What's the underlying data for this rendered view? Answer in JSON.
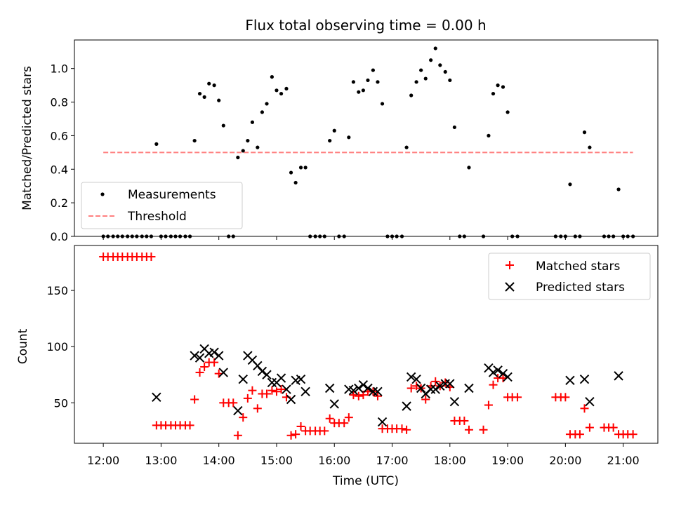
{
  "chart_data": [
    {
      "type": "scatter",
      "title": "Flux total observing time = 0.00 h",
      "xlabel": "",
      "ylabel": "Matched/Predicted stars",
      "xlim": [
        11.5,
        21.6
      ],
      "ylim": [
        0,
        1.17
      ],
      "yticks": [
        0.0,
        0.2,
        0.4,
        0.6,
        0.8,
        1.0
      ],
      "ytick_labels": [
        "0.0",
        "0.2",
        "0.4",
        "0.6",
        "0.8",
        "1.0"
      ],
      "threshold": {
        "name": "Threshold",
        "value": 0.5,
        "x_range": [
          12.0,
          21.17
        ],
        "color": "#ff8080"
      },
      "legend": {
        "position": "lower-left",
        "entries": [
          "Measurements",
          "Threshold"
        ]
      },
      "series": [
        {
          "name": "Measurements",
          "marker": "dot",
          "color": "#000000",
          "points": [
            [
              12.0,
              0
            ],
            [
              12.08,
              0
            ],
            [
              12.17,
              0
            ],
            [
              12.25,
              0
            ],
            [
              12.33,
              0
            ],
            [
              12.42,
              0
            ],
            [
              12.5,
              0
            ],
            [
              12.58,
              0
            ],
            [
              12.67,
              0
            ],
            [
              12.75,
              0
            ],
            [
              12.83,
              0
            ],
            [
              12.92,
              0.55
            ],
            [
              13.0,
              0
            ],
            [
              13.08,
              0
            ],
            [
              13.17,
              0
            ],
            [
              13.25,
              0
            ],
            [
              13.33,
              0
            ],
            [
              13.42,
              0
            ],
            [
              13.5,
              0
            ],
            [
              13.58,
              0.57
            ],
            [
              13.67,
              0.85
            ],
            [
              13.75,
              0.83
            ],
            [
              13.83,
              0.91
            ],
            [
              13.92,
              0.9
            ],
            [
              14.0,
              0.81
            ],
            [
              14.08,
              0.66
            ],
            [
              14.17,
              0
            ],
            [
              14.25,
              0
            ],
            [
              14.33,
              0.47
            ],
            [
              14.42,
              0.51
            ],
            [
              14.5,
              0.57
            ],
            [
              14.58,
              0.68
            ],
            [
              14.67,
              0.53
            ],
            [
              14.75,
              0.74
            ],
            [
              14.83,
              0.79
            ],
            [
              14.92,
              0.95
            ],
            [
              15.0,
              0.87
            ],
            [
              15.08,
              0.85
            ],
            [
              15.17,
              0.88
            ],
            [
              15.25,
              0.38
            ],
            [
              15.33,
              0.32
            ],
            [
              15.42,
              0.41
            ],
            [
              15.5,
              0.41
            ],
            [
              15.58,
              0
            ],
            [
              15.67,
              0
            ],
            [
              15.75,
              0
            ],
            [
              15.83,
              0
            ],
            [
              15.92,
              0.57
            ],
            [
              16.0,
              0.63
            ],
            [
              16.08,
              0
            ],
            [
              16.17,
              0
            ],
            [
              16.25,
              0.59
            ],
            [
              16.33,
              0.92
            ],
            [
              16.42,
              0.86
            ],
            [
              16.5,
              0.87
            ],
            [
              16.58,
              0.93
            ],
            [
              16.67,
              0.99
            ],
            [
              16.75,
              0.92
            ],
            [
              16.83,
              0.79
            ],
            [
              16.92,
              0
            ],
            [
              17.0,
              0
            ],
            [
              17.08,
              0
            ],
            [
              17.17,
              0
            ],
            [
              17.25,
              0.53
            ],
            [
              17.33,
              0.84
            ],
            [
              17.42,
              0.92
            ],
            [
              17.5,
              0.99
            ],
            [
              17.58,
              0.94
            ],
            [
              17.67,
              1.05
            ],
            [
              17.75,
              1.12
            ],
            [
              17.83,
              1.02
            ],
            [
              17.92,
              0.98
            ],
            [
              18.0,
              0.93
            ],
            [
              18.08,
              0.65
            ],
            [
              18.17,
              0
            ],
            [
              18.25,
              0
            ],
            [
              18.33,
              0.41
            ],
            [
              18.58,
              0
            ],
            [
              18.67,
              0.6
            ],
            [
              18.75,
              0.85
            ],
            [
              18.83,
              0.9
            ],
            [
              18.92,
              0.89
            ],
            [
              19.0,
              0.74
            ],
            [
              19.08,
              0
            ],
            [
              19.17,
              0
            ],
            [
              19.83,
              0
            ],
            [
              19.92,
              0
            ],
            [
              20.0,
              0
            ],
            [
              20.08,
              0.31
            ],
            [
              20.17,
              0
            ],
            [
              20.25,
              0
            ],
            [
              20.33,
              0.62
            ],
            [
              20.42,
              0.53
            ],
            [
              20.67,
              0
            ],
            [
              20.75,
              0
            ],
            [
              20.83,
              0
            ],
            [
              20.92,
              0.28
            ],
            [
              21.0,
              0
            ],
            [
              21.08,
              0
            ],
            [
              21.17,
              0
            ]
          ]
        }
      ]
    },
    {
      "type": "scatter",
      "title": "",
      "xlabel": "Time (UTC)",
      "ylabel": "Count",
      "xlim": [
        11.5,
        21.6
      ],
      "ylim": [
        14,
        190
      ],
      "yticks": [
        50,
        100,
        150
      ],
      "ytick_labels": [
        "50",
        "100",
        "150"
      ],
      "xticks": [
        12,
        13,
        14,
        15,
        16,
        17,
        18,
        19,
        20,
        21
      ],
      "xtick_labels": [
        "12:00",
        "13:00",
        "14:00",
        "15:00",
        "16:00",
        "17:00",
        "18:00",
        "19:00",
        "20:00",
        "21:00"
      ],
      "legend": {
        "position": "top-right",
        "entries": [
          "Matched stars",
          "Predicted stars"
        ]
      },
      "series": [
        {
          "name": "Matched stars",
          "marker": "plus",
          "color": "#ff0000",
          "points": [
            [
              12.0,
              180
            ],
            [
              12.08,
              180
            ],
            [
              12.17,
              180
            ],
            [
              12.25,
              180
            ],
            [
              12.33,
              180
            ],
            [
              12.42,
              180
            ],
            [
              12.5,
              180
            ],
            [
              12.58,
              180
            ],
            [
              12.67,
              180
            ],
            [
              12.75,
              180
            ],
            [
              12.83,
              180
            ],
            [
              12.92,
              30
            ],
            [
              13.0,
              30
            ],
            [
              13.08,
              30
            ],
            [
              13.17,
              30
            ],
            [
              13.25,
              30
            ],
            [
              13.33,
              30
            ],
            [
              13.42,
              30
            ],
            [
              13.5,
              30
            ],
            [
              13.58,
              53
            ],
            [
              13.67,
              77
            ],
            [
              13.75,
              82
            ],
            [
              13.83,
              86
            ],
            [
              13.92,
              86
            ],
            [
              14.0,
              76
            ],
            [
              14.08,
              50
            ],
            [
              14.17,
              50
            ],
            [
              14.25,
              50
            ],
            [
              14.33,
              21
            ],
            [
              14.42,
              37
            ],
            [
              14.5,
              54
            ],
            [
              14.58,
              61
            ],
            [
              14.67,
              45
            ],
            [
              14.75,
              58
            ],
            [
              14.83,
              58
            ],
            [
              14.92,
              61
            ],
            [
              15.0,
              60
            ],
            [
              15.08,
              62
            ],
            [
              15.17,
              55
            ],
            [
              15.25,
              21
            ],
            [
              15.33,
              22
            ],
            [
              15.42,
              29
            ],
            [
              15.5,
              25
            ],
            [
              15.58,
              25
            ],
            [
              15.67,
              25
            ],
            [
              15.75,
              25
            ],
            [
              15.83,
              25
            ],
            [
              15.92,
              36
            ],
            [
              16.0,
              32
            ],
            [
              16.08,
              32
            ],
            [
              16.17,
              32
            ],
            [
              16.25,
              37
            ],
            [
              16.33,
              57
            ],
            [
              16.42,
              56
            ],
            [
              16.5,
              57
            ],
            [
              16.58,
              60
            ],
            [
              16.67,
              60
            ],
            [
              16.75,
              56
            ],
            [
              16.83,
              27
            ],
            [
              16.92,
              27
            ],
            [
              17.0,
              27
            ],
            [
              17.08,
              27
            ],
            [
              17.17,
              27
            ],
            [
              17.25,
              26
            ],
            [
              17.33,
              63
            ],
            [
              17.42,
              65
            ],
            [
              17.5,
              63
            ],
            [
              17.58,
              53
            ],
            [
              17.67,
              65
            ],
            [
              17.75,
              69
            ],
            [
              17.83,
              65
            ],
            [
              17.92,
              68
            ],
            [
              18.0,
              64
            ],
            [
              18.08,
              34
            ],
            [
              18.17,
              34
            ],
            [
              18.25,
              34
            ],
            [
              18.33,
              26
            ],
            [
              18.58,
              26
            ],
            [
              18.67,
              48
            ],
            [
              18.75,
              66
            ],
            [
              18.83,
              72
            ],
            [
              18.92,
              72
            ],
            [
              19.0,
              55
            ],
            [
              19.08,
              55
            ],
            [
              19.17,
              55
            ],
            [
              19.83,
              55
            ],
            [
              19.92,
              55
            ],
            [
              20.0,
              55
            ],
            [
              20.08,
              22
            ],
            [
              20.17,
              22
            ],
            [
              20.25,
              22
            ],
            [
              20.33,
              45
            ],
            [
              20.42,
              28
            ],
            [
              20.67,
              28
            ],
            [
              20.75,
              28
            ],
            [
              20.83,
              28
            ],
            [
              20.92,
              22
            ],
            [
              21.0,
              22
            ],
            [
              21.08,
              22
            ],
            [
              21.17,
              22
            ]
          ]
        },
        {
          "name": "Predicted stars",
          "marker": "cross",
          "color": "#000000",
          "points": [
            [
              12.92,
              55
            ],
            [
              13.58,
              92
            ],
            [
              13.67,
              90
            ],
            [
              13.75,
              98
            ],
            [
              13.83,
              94
            ],
            [
              13.92,
              95
            ],
            [
              14.0,
              92
            ],
            [
              14.08,
              77
            ],
            [
              14.33,
              43
            ],
            [
              14.42,
              71
            ],
            [
              14.5,
              92
            ],
            [
              14.58,
              88
            ],
            [
              14.67,
              83
            ],
            [
              14.75,
              78
            ],
            [
              14.83,
              75
            ],
            [
              14.92,
              68
            ],
            [
              15.0,
              68
            ],
            [
              15.08,
              72
            ],
            [
              15.17,
              62
            ],
            [
              15.25,
              53
            ],
            [
              15.33,
              70
            ],
            [
              15.42,
              71
            ],
            [
              15.5,
              60
            ],
            [
              15.92,
              63
            ],
            [
              16.0,
              49
            ],
            [
              16.25,
              62
            ],
            [
              16.33,
              61
            ],
            [
              16.42,
              63
            ],
            [
              16.5,
              66
            ],
            [
              16.58,
              63
            ],
            [
              16.67,
              60
            ],
            [
              16.75,
              60
            ],
            [
              16.83,
              33
            ],
            [
              17.25,
              47
            ],
            [
              17.33,
              73
            ],
            [
              17.42,
              71
            ],
            [
              17.5,
              63
            ],
            [
              17.58,
              58
            ],
            [
              17.67,
              62
            ],
            [
              17.75,
              62
            ],
            [
              17.83,
              65
            ],
            [
              17.92,
              67
            ],
            [
              18.0,
              67
            ],
            [
              18.08,
              51
            ],
            [
              18.33,
              63
            ],
            [
              18.67,
              81
            ],
            [
              18.75,
              77
            ],
            [
              18.83,
              79
            ],
            [
              18.92,
              76
            ],
            [
              19.0,
              73
            ],
            [
              20.08,
              70
            ],
            [
              20.33,
              71
            ],
            [
              20.42,
              51
            ],
            [
              20.92,
              74
            ]
          ]
        }
      ]
    }
  ]
}
